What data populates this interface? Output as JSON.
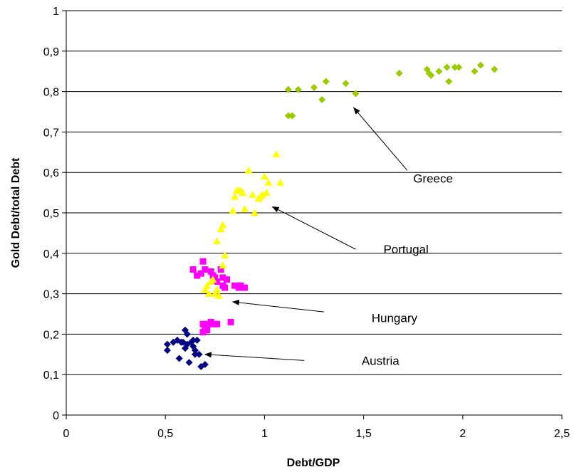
{
  "chart_data": {
    "type": "scatter",
    "title": "",
    "xlabel": "Debt/GDP",
    "ylabel": "Gold Debt/total Debt",
    "xlim": [
      0,
      2.5
    ],
    "ylim": [
      0,
      1
    ],
    "x_ticks": [
      0,
      0.5,
      1,
      1.5,
      2,
      2.5
    ],
    "x_tick_labels": [
      "0",
      "0,5",
      "1",
      "1,5",
      "2",
      "2,5"
    ],
    "y_ticks": [
      0,
      0.1,
      0.2,
      0.3,
      0.4,
      0.5,
      0.6,
      0.7,
      0.8,
      0.9,
      1
    ],
    "y_tick_labels": [
      "0",
      "0,1",
      "0,2",
      "0,3",
      "0,4",
      "0,5",
      "0,6",
      "0,7",
      "0,8",
      "0,9",
      "1"
    ],
    "grid": "horizontal",
    "legend": "none",
    "series": [
      {
        "name": "Austria",
        "marker": "diamond",
        "color": "#000080",
        "points": [
          [
            0.51,
            0.175
          ],
          [
            0.51,
            0.16
          ],
          [
            0.54,
            0.18
          ],
          [
            0.56,
            0.185
          ],
          [
            0.57,
            0.14
          ],
          [
            0.58,
            0.18
          ],
          [
            0.59,
            0.18
          ],
          [
            0.6,
            0.21
          ],
          [
            0.6,
            0.165
          ],
          [
            0.61,
            0.2
          ],
          [
            0.61,
            0.175
          ],
          [
            0.62,
            0.13
          ],
          [
            0.63,
            0.18
          ],
          [
            0.64,
            0.185
          ],
          [
            0.64,
            0.17
          ],
          [
            0.65,
            0.16
          ],
          [
            0.65,
            0.15
          ],
          [
            0.66,
            0.185
          ],
          [
            0.67,
            0.15
          ],
          [
            0.68,
            0.12
          ],
          [
            0.7,
            0.125
          ]
        ]
      },
      {
        "name": "Hungary",
        "marker": "square",
        "color": "#FF00FF",
        "points": [
          [
            0.64,
            0.36
          ],
          [
            0.66,
            0.345
          ],
          [
            0.68,
            0.35
          ],
          [
            0.69,
            0.38
          ],
          [
            0.7,
            0.36
          ],
          [
            0.73,
            0.355
          ],
          [
            0.74,
            0.345
          ],
          [
            0.75,
            0.34
          ],
          [
            0.76,
            0.33
          ],
          [
            0.78,
            0.36
          ],
          [
            0.79,
            0.34
          ],
          [
            0.79,
            0.32
          ],
          [
            0.8,
            0.315
          ],
          [
            0.81,
            0.335
          ],
          [
            0.85,
            0.32
          ],
          [
            0.87,
            0.315
          ],
          [
            0.88,
            0.32
          ],
          [
            0.9,
            0.315
          ],
          [
            0.69,
            0.205
          ],
          [
            0.7,
            0.215
          ],
          [
            0.71,
            0.21
          ],
          [
            0.72,
            0.225
          ],
          [
            0.73,
            0.23
          ],
          [
            0.75,
            0.225
          ],
          [
            0.76,
            0.225
          ],
          [
            0.83,
            0.23
          ],
          [
            0.69,
            0.225
          ]
        ]
      },
      {
        "name": "Portugal",
        "marker": "triangle",
        "color": "#FFFF00",
        "points": [
          [
            0.7,
            0.31
          ],
          [
            0.71,
            0.32
          ],
          [
            0.72,
            0.3
          ],
          [
            0.73,
            0.33
          ],
          [
            0.74,
            0.335
          ],
          [
            0.75,
            0.3
          ],
          [
            0.76,
            0.31
          ],
          [
            0.77,
            0.295
          ],
          [
            0.76,
            0.43
          ],
          [
            0.78,
            0.46
          ],
          [
            0.79,
            0.47
          ],
          [
            0.79,
            0.37
          ],
          [
            0.8,
            0.395
          ],
          [
            0.84,
            0.505
          ],
          [
            0.85,
            0.54
          ],
          [
            0.86,
            0.555
          ],
          [
            0.87,
            0.555
          ],
          [
            0.88,
            0.555
          ],
          [
            0.89,
            0.55
          ],
          [
            0.9,
            0.51
          ],
          [
            0.92,
            0.605
          ],
          [
            0.94,
            0.545
          ],
          [
            0.95,
            0.5
          ],
          [
            0.97,
            0.535
          ],
          [
            0.98,
            0.54
          ],
          [
            0.99,
            0.545
          ],
          [
            1.0,
            0.59
          ],
          [
            1.01,
            0.55
          ],
          [
            1.02,
            0.575
          ],
          [
            1.06,
            0.645
          ],
          [
            1.08,
            0.575
          ]
        ]
      },
      {
        "name": "Greece",
        "marker": "diamond",
        "color": "#99CC00",
        "points": [
          [
            1.12,
            0.74
          ],
          [
            1.12,
            0.805
          ],
          [
            1.14,
            0.74
          ],
          [
            1.17,
            0.805
          ],
          [
            1.25,
            0.81
          ],
          [
            1.29,
            0.78
          ],
          [
            1.31,
            0.825
          ],
          [
            1.41,
            0.82
          ],
          [
            1.46,
            0.795
          ],
          [
            1.68,
            0.845
          ],
          [
            1.82,
            0.855
          ],
          [
            1.83,
            0.845
          ],
          [
            1.84,
            0.84
          ],
          [
            1.88,
            0.85
          ],
          [
            1.92,
            0.86
          ],
          [
            1.93,
            0.825
          ],
          [
            1.96,
            0.86
          ],
          [
            1.98,
            0.86
          ],
          [
            2.06,
            0.85
          ],
          [
            2.09,
            0.865
          ],
          [
            2.16,
            0.855
          ]
        ]
      }
    ],
    "annotations": [
      {
        "label": "Greece",
        "text_x": 1.75,
        "text_y": 0.585,
        "arrow_from": [
          1.72,
          0.605
        ],
        "arrow_to": [
          1.45,
          0.76
        ]
      },
      {
        "label": "Portugal",
        "text_x": 1.6,
        "text_y": 0.41,
        "arrow_from": [
          1.46,
          0.41
        ],
        "arrow_to": [
          1.04,
          0.515
        ]
      },
      {
        "label": "Hungary",
        "text_x": 1.54,
        "text_y": 0.24,
        "arrow_from": [
          1.3,
          0.255
        ],
        "arrow_to": [
          0.84,
          0.28
        ]
      },
      {
        "label": "Austria",
        "text_x": 1.49,
        "text_y": 0.135,
        "arrow_from": [
          1.2,
          0.135
        ],
        "arrow_to": [
          0.7,
          0.15
        ]
      }
    ]
  }
}
